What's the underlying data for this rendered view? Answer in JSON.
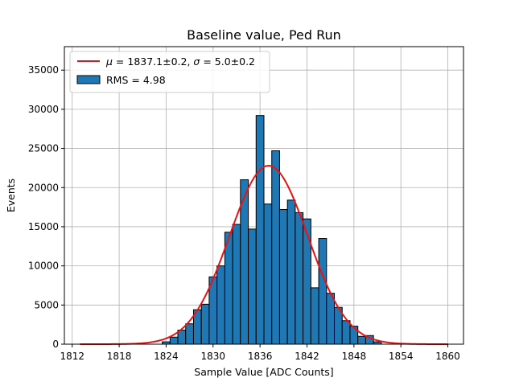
{
  "chart_data": {
    "type": "bar",
    "title": "Baseline value, Ped Run",
    "xlabel": "Sample Value [ADC Counts]",
    "ylabel": "Events",
    "xlim": [
      1811.0,
      1862.0
    ],
    "ylim": [
      0,
      38000
    ],
    "xticks": [
      1812,
      1818,
      1824,
      1830,
      1836,
      1842,
      1848,
      1854,
      1860
    ],
    "yticks": [
      0,
      5000,
      10000,
      15000,
      20000,
      25000,
      30000,
      35000
    ],
    "grid": true,
    "legend_position": "top-left",
    "bin_width": 1,
    "histogram": {
      "name": "RMS = 4.98",
      "color": "#1f77b4",
      "edgecolor": "#000000",
      "bins": [
        {
          "x": 1824,
          "count": 300
        },
        {
          "x": 1825,
          "count": 900
        },
        {
          "x": 1826,
          "count": 1800
        },
        {
          "x": 1827,
          "count": 2600
        },
        {
          "x": 1828,
          "count": 4400
        },
        {
          "x": 1829,
          "count": 5100
        },
        {
          "x": 1830,
          "count": 8600
        },
        {
          "x": 1831,
          "count": 10000
        },
        {
          "x": 1832,
          "count": 14300
        },
        {
          "x": 1833,
          "count": 15300
        },
        {
          "x": 1834,
          "count": 21000
        },
        {
          "x": 1835,
          "count": 14700
        },
        {
          "x": 1836,
          "count": 29200
        },
        {
          "x": 1837,
          "count": 17900
        },
        {
          "x": 1838,
          "count": 24700
        },
        {
          "x": 1839,
          "count": 17200
        },
        {
          "x": 1840,
          "count": 18400
        },
        {
          "x": 1841,
          "count": 16800
        },
        {
          "x": 1842,
          "count": 16000
        },
        {
          "x": 1843,
          "count": 7200
        },
        {
          "x": 1844,
          "count": 13500
        },
        {
          "x": 1845,
          "count": 6500
        },
        {
          "x": 1846,
          "count": 4700
        },
        {
          "x": 1847,
          "count": 3000
        },
        {
          "x": 1848,
          "count": 2300
        },
        {
          "x": 1849,
          "count": 1000
        },
        {
          "x": 1850,
          "count": 1100
        },
        {
          "x": 1851,
          "count": 300
        }
      ]
    },
    "fit": {
      "type": "gaussian",
      "name": "$\\mu = 1837.1\\pm0.2$, $\\sigma = 5.0\\pm0.2$",
      "legend_mu_label": "μ",
      "legend_mu_text": " = 1837.1±0.2, ",
      "legend_sigma_label": "σ",
      "legend_sigma_text": " = 5.0±0.2",
      "color": "#ee1111",
      "mu": 1837.1,
      "sigma": 5.0,
      "amplitude": 22800,
      "x_range": [
        1813,
        1860
      ]
    }
  }
}
